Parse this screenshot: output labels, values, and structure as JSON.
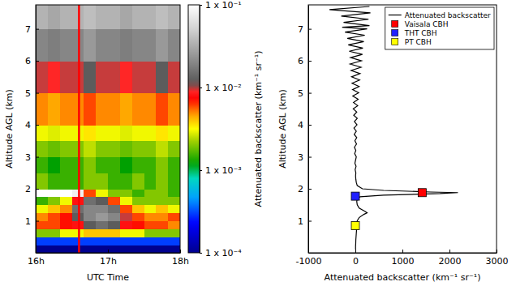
{
  "chart_data": [
    {
      "type": "heatmap",
      "x_label": "UTC Time",
      "y_label": "Altitude AGL (km)",
      "xlim": [
        16,
        18
      ],
      "xticks": [
        {
          "value": 16,
          "label": "16h"
        },
        {
          "value": 17,
          "label": "17h"
        },
        {
          "value": 18,
          "label": "18h"
        }
      ],
      "ylim": [
        0,
        7.75
      ],
      "yticks": [
        1,
        2,
        3,
        4,
        5,
        6,
        7
      ],
      "x_edges": [
        16,
        16.1667,
        16.3333,
        16.5,
        16.6667,
        16.8333,
        17,
        17.1667,
        17.3333,
        17.5,
        17.6667,
        17.8333,
        18
      ],
      "y_edges": [
        0,
        0.25,
        0.5,
        0.75,
        1,
        1.25,
        1.5,
        1.75,
        2,
        2.5,
        3,
        3.5,
        4,
        5,
        6,
        7,
        7.75
      ],
      "cells": [
        [
          0.0001,
          0.0001,
          0.0001,
          0.0001,
          0.0001,
          0.0001,
          0.0001,
          0.0001,
          0.0001,
          0.0001,
          0.0001,
          0.0001
        ],
        [
          0.0003,
          0.0003,
          0.0003,
          0.0003,
          0.0003,
          0.0003,
          0.0003,
          0.0003,
          0.0003,
          0.0003,
          0.0003,
          0.0003
        ],
        [
          0.002,
          0.002,
          0.003,
          0.003,
          0.004,
          0.004,
          0.004,
          0.003,
          0.003,
          0.002,
          0.002,
          0.002
        ],
        [
          0.006,
          0.006,
          0.007,
          0.008,
          0.012,
          0.015,
          0.012,
          0.008,
          0.007,
          0.006,
          0.006,
          0.005
        ],
        [
          0.005,
          0.006,
          0.007,
          0.012,
          0.02,
          0.025,
          0.02,
          0.01,
          0.006,
          0.005,
          0.005,
          0.006
        ],
        [
          0.003,
          0.004,
          0.005,
          0.015,
          0.02,
          0.02,
          0.015,
          0.006,
          0.004,
          0.003,
          0.004,
          0.003
        ],
        [
          0.0015,
          0.002,
          0.003,
          0.008,
          0.015,
          0.012,
          0.006,
          0.003,
          0.002,
          0.002,
          0.002,
          0.002
        ],
        [
          0.1,
          0.1,
          0.1,
          0.08,
          0.006,
          0.003,
          0.002,
          0.002,
          0.0015,
          0.002,
          0.002,
          0.0015
        ],
        [
          0.002,
          0.0015,
          0.0015,
          0.0015,
          0.002,
          0.002,
          0.0015,
          0.0015,
          0.002,
          0.0015,
          0.002,
          0.0015
        ],
        [
          0.0015,
          0.0012,
          0.0015,
          0.0015,
          0.002,
          0.0015,
          0.0015,
          0.0012,
          0.0015,
          0.0015,
          0.002,
          0.0015
        ],
        [
          0.002,
          0.0018,
          0.002,
          0.002,
          0.0025,
          0.002,
          0.002,
          0.0018,
          0.002,
          0.002,
          0.0025,
          0.002
        ],
        [
          0.003,
          0.0028,
          0.003,
          0.003,
          0.0035,
          0.003,
          0.003,
          0.0028,
          0.003,
          0.003,
          0.0035,
          0.003
        ],
        [
          0.005,
          0.0045,
          0.005,
          0.005,
          0.006,
          0.005,
          0.005,
          0.0045,
          0.005,
          0.005,
          0.006,
          0.005
        ],
        [
          0.01,
          0.009,
          0.01,
          0.01,
          0.012,
          0.01,
          0.01,
          0.009,
          0.01,
          0.01,
          0.012,
          0.01
        ],
        [
          0.02,
          0.018,
          0.02,
          0.02,
          0.025,
          0.02,
          0.02,
          0.018,
          0.02,
          0.02,
          0.025,
          0.02
        ],
        [
          0.035,
          0.03,
          0.035,
          0.035,
          0.04,
          0.035,
          0.035,
          0.03,
          0.035,
          0.035,
          0.04,
          0.035
        ]
      ],
      "colorbar": {
        "label": "Attenuated backscatter (km⁻¹ sr⁻¹)",
        "range": [
          0.0001,
          0.1
        ],
        "ticks": [
          {
            "value": 0.0001,
            "label": "1 x 10⁻⁴"
          },
          {
            "value": 0.001,
            "label": "1 x 10⁻³"
          },
          {
            "value": 0.01,
            "label": "1 x 10⁻²"
          },
          {
            "value": 0.1,
            "label": "1 x 10⁻¹"
          }
        ]
      },
      "profile_time": 16.6
    },
    {
      "type": "line",
      "x_label": "Attenuated backscatter (km⁻¹ sr⁻¹)",
      "y_label": "Altitude AGL (km)",
      "xlim": [
        -1000,
        3000
      ],
      "xticks": [
        -1000,
        0,
        1000,
        2000,
        3000
      ],
      "ylim": [
        0,
        7.75
      ],
      "yticks": [
        1,
        2,
        3,
        4,
        5,
        6,
        7
      ],
      "legend": "upper right",
      "series": [
        {
          "name": "Attenuated backscatter",
          "type": "line",
          "color": "#000000",
          "x": [
            5,
            5,
            8,
            10,
            15,
            20,
            25,
            30,
            30,
            40,
            80,
            180,
            250,
            200,
            80,
            40,
            30,
            40,
            100,
            600,
            1800,
            2180,
            1600,
            600,
            150,
            40,
            20,
            10,
            5,
            10,
            -5,
            15,
            -10,
            5,
            20,
            -15,
            10,
            -20,
            25,
            -10,
            30,
            -25,
            20,
            -30,
            35,
            -20,
            40,
            -35,
            30,
            -45,
            50,
            -40,
            60,
            -55,
            70,
            -60,
            80,
            -70,
            90,
            -80,
            100,
            -90,
            120,
            -110,
            130,
            -100,
            150,
            -130,
            160,
            -150,
            180,
            -170,
            200,
            -220,
            250,
            -280,
            300,
            -250,
            280,
            -300,
            320,
            -550,
            300
          ],
          "y": [
            0.1,
            0.2,
            0.3,
            0.4,
            0.5,
            0.6,
            0.7,
            0.8,
            0.9,
            1.0,
            1.1,
            1.2,
            1.25,
            1.3,
            1.4,
            1.5,
            1.6,
            1.7,
            1.75,
            1.8,
            1.85,
            1.88,
            1.9,
            1.95,
            2.0,
            2.1,
            2.2,
            2.3,
            2.4,
            2.5,
            2.6,
            2.7,
            2.8,
            2.9,
            3.0,
            3.1,
            3.2,
            3.3,
            3.4,
            3.5,
            3.6,
            3.7,
            3.8,
            3.9,
            4.0,
            4.1,
            4.2,
            4.3,
            4.4,
            4.5,
            4.6,
            4.7,
            4.8,
            4.9,
            5.0,
            5.1,
            5.2,
            5.3,
            5.4,
            5.5,
            5.6,
            5.7,
            5.8,
            5.9,
            6.0,
            6.1,
            6.2,
            6.3,
            6.4,
            6.5,
            6.6,
            6.7,
            6.8,
            6.9,
            7.0,
            7.05,
            7.1,
            7.2,
            7.3,
            7.4,
            7.5,
            7.6,
            7.7
          ]
        },
        {
          "name": "Vaisala CBH",
          "type": "scatter",
          "marker": "square",
          "color": "#ff0000",
          "x": [
            1420
          ],
          "y": [
            1.88
          ]
        },
        {
          "name": "THT CBH",
          "type": "scatter",
          "marker": "square",
          "color": "#2020ff",
          "x": [
            0
          ],
          "y": [
            1.77
          ]
        },
        {
          "name": "PT CBH",
          "type": "scatter",
          "marker": "square",
          "color": "#ffff00",
          "x": [
            0
          ],
          "y": [
            0.85
          ]
        }
      ]
    }
  ]
}
